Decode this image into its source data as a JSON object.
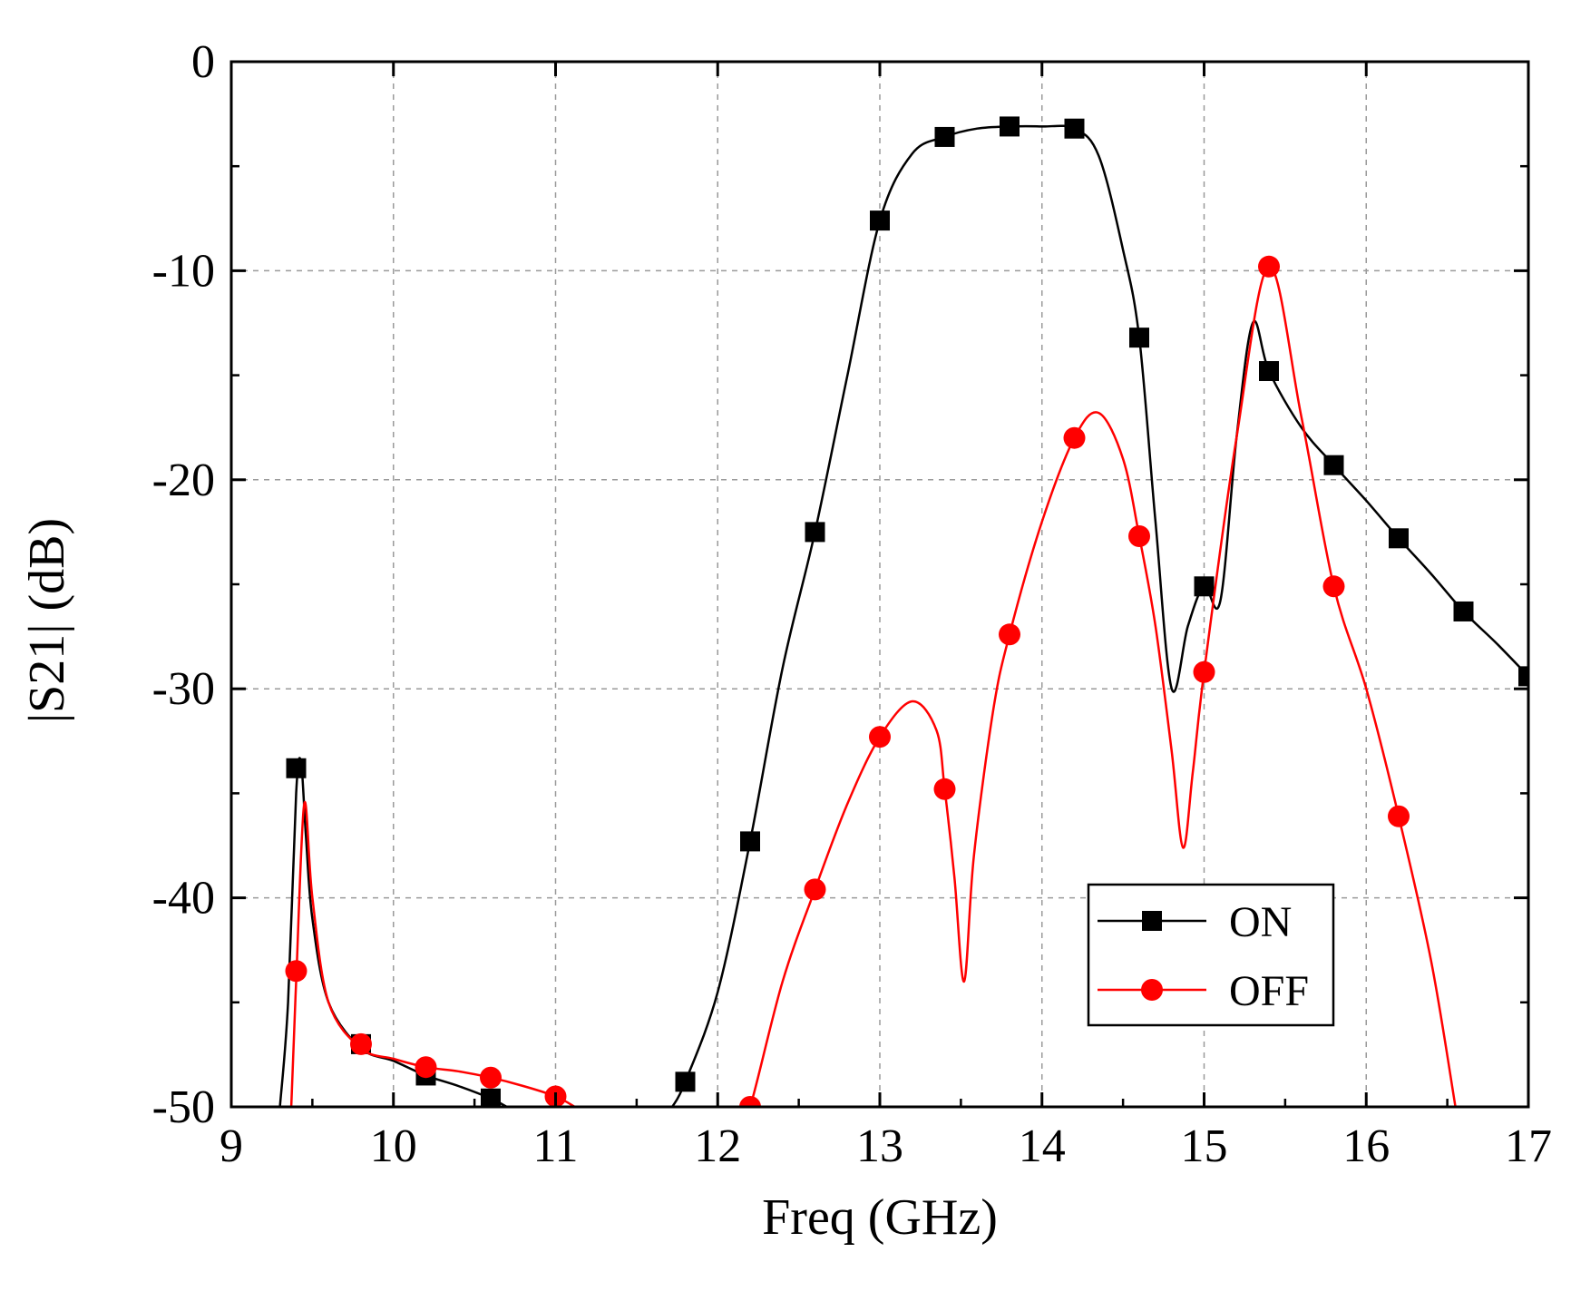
{
  "chart_data": {
    "type": "line",
    "title": "",
    "xlabel": "Freq (GHz)",
    "ylabel": "|S21| (dB)",
    "xlim": [
      9,
      17
    ],
    "ylim": [
      -50,
      0
    ],
    "xticks": [
      9,
      10,
      11,
      12,
      13,
      14,
      15,
      16,
      17
    ],
    "yticks": [
      0,
      -10,
      -20,
      -30,
      -40,
      -50
    ],
    "grid": true,
    "legend_position": "lower-right",
    "colors": {
      "ON": "#000000",
      "OFF": "#ff0000"
    },
    "series": [
      {
        "name": "ON",
        "marker": "square",
        "curve_segments": [
          [
            [
              9.3,
              -50
            ],
            [
              9.35,
              -45
            ],
            [
              9.4,
              -35
            ],
            [
              9.43,
              -33.5
            ],
            [
              9.46,
              -37
            ],
            [
              9.5,
              -41
            ],
            [
              9.6,
              -45
            ],
            [
              9.8,
              -47.2
            ],
            [
              10.0,
              -47.8
            ],
            [
              10.2,
              -48.5
            ],
            [
              10.4,
              -49.0
            ],
            [
              10.6,
              -49.6
            ],
            [
              10.7,
              -50
            ]
          ],
          [
            [
              11.72,
              -50
            ],
            [
              11.8,
              -48.8
            ],
            [
              12.0,
              -44.5
            ],
            [
              12.2,
              -37.3
            ],
            [
              12.4,
              -29
            ],
            [
              12.6,
              -22.5
            ],
            [
              12.8,
              -15
            ],
            [
              13.0,
              -7.6
            ],
            [
              13.2,
              -4.4
            ],
            [
              13.4,
              -3.6
            ],
            [
              13.6,
              -3.2
            ],
            [
              13.8,
              -3.1
            ],
            [
              14.0,
              -3.1
            ],
            [
              14.2,
              -3.2
            ],
            [
              14.35,
              -4.5
            ],
            [
              14.5,
              -9
            ],
            [
              14.6,
              -13.2
            ],
            [
              14.7,
              -22
            ],
            [
              14.8,
              -30
            ],
            [
              14.9,
              -27
            ],
            [
              15.0,
              -25.1
            ],
            [
              15.1,
              -25.8
            ],
            [
              15.2,
              -18
            ],
            [
              15.3,
              -12.5
            ],
            [
              15.4,
              -14.8
            ],
            [
              15.6,
              -17.5
            ],
            [
              15.8,
              -19.3
            ],
            [
              16.0,
              -21.0
            ],
            [
              16.2,
              -22.8
            ],
            [
              16.4,
              -24.5
            ],
            [
              16.6,
              -26.3
            ],
            [
              16.8,
              -27.8
            ],
            [
              17.0,
              -29.4
            ]
          ]
        ],
        "marker_points": [
          [
            9.4,
            -33.8
          ],
          [
            9.8,
            -47.0
          ],
          [
            10.2,
            -48.5
          ],
          [
            10.6,
            -49.6
          ],
          [
            11.8,
            -48.8
          ],
          [
            12.2,
            -37.3
          ],
          [
            12.6,
            -22.5
          ],
          [
            13.0,
            -7.6
          ],
          [
            13.4,
            -3.6
          ],
          [
            13.8,
            -3.1
          ],
          [
            14.2,
            -3.2
          ],
          [
            14.6,
            -13.2
          ],
          [
            15.0,
            -25.1
          ],
          [
            15.4,
            -14.8
          ],
          [
            15.8,
            -19.3
          ],
          [
            16.2,
            -22.8
          ],
          [
            16.6,
            -26.3
          ],
          [
            17.0,
            -29.4
          ]
        ]
      },
      {
        "name": "OFF",
        "marker": "circle",
        "curve_segments": [
          [
            [
              9.37,
              -50
            ],
            [
              9.4,
              -44
            ],
            [
              9.45,
              -35.5
            ],
            [
              9.5,
              -40
            ],
            [
              9.6,
              -45
            ],
            [
              9.8,
              -47.2
            ],
            [
              10.0,
              -47.7
            ],
            [
              10.2,
              -48.1
            ],
            [
              10.4,
              -48.3
            ],
            [
              10.6,
              -48.6
            ],
            [
              10.8,
              -49.0
            ],
            [
              11.0,
              -49.5
            ],
            [
              11.12,
              -50
            ]
          ],
          [
            [
              12.15,
              -50
            ],
            [
              12.2,
              -50.0
            ],
            [
              12.4,
              -44
            ],
            [
              12.6,
              -39.6
            ],
            [
              12.8,
              -35.5
            ],
            [
              13.0,
              -32.3
            ],
            [
              13.2,
              -30.6
            ],
            [
              13.35,
              -32
            ],
            [
              13.4,
              -34.8
            ],
            [
              13.46,
              -39
            ],
            [
              13.52,
              -44
            ],
            [
              13.58,
              -38
            ],
            [
              13.7,
              -31
            ],
            [
              13.8,
              -27.4
            ],
            [
              14.0,
              -22
            ],
            [
              14.2,
              -18.0
            ],
            [
              14.35,
              -16.8
            ],
            [
              14.5,
              -19
            ],
            [
              14.6,
              -22.7
            ],
            [
              14.7,
              -27
            ],
            [
              14.8,
              -33
            ],
            [
              14.87,
              -37.6
            ],
            [
              14.93,
              -34
            ],
            [
              15.0,
              -29.2
            ],
            [
              15.2,
              -18
            ],
            [
              15.4,
              -9.8
            ],
            [
              15.6,
              -17
            ],
            [
              15.8,
              -25.1
            ],
            [
              16.0,
              -30
            ],
            [
              16.2,
              -36.1
            ],
            [
              16.4,
              -43
            ],
            [
              16.55,
              -50
            ]
          ]
        ],
        "marker_points": [
          [
            9.4,
            -43.5
          ],
          [
            9.8,
            -47.0
          ],
          [
            10.2,
            -48.1
          ],
          [
            10.6,
            -48.6
          ],
          [
            11.0,
            -49.5
          ],
          [
            12.2,
            -50.0
          ],
          [
            12.6,
            -39.6
          ],
          [
            13.0,
            -32.3
          ],
          [
            13.4,
            -34.8
          ],
          [
            13.8,
            -27.4
          ],
          [
            14.2,
            -18.0
          ],
          [
            14.6,
            -22.7
          ],
          [
            15.0,
            -29.2
          ],
          [
            15.4,
            -9.8
          ],
          [
            15.8,
            -25.1
          ],
          [
            16.2,
            -36.1
          ]
        ]
      }
    ]
  }
}
